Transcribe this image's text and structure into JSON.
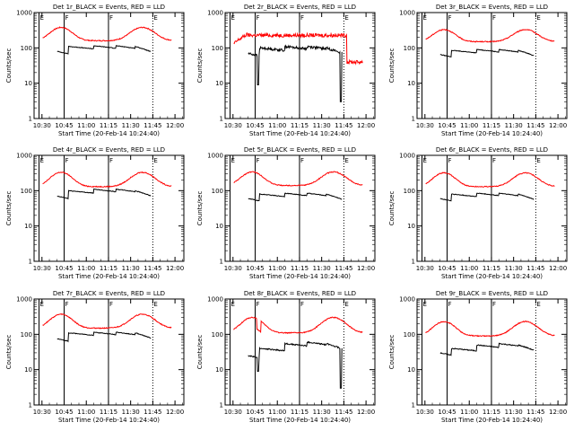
{
  "chart_data": [
    {
      "type": "line",
      "title": "Det 1r_BLACK = Events, RED = LLD",
      "xlabel": "Start Time (20-Feb-14 10:24:40)",
      "ylabel": "Counts/sec",
      "yscale": "log",
      "ylim": [
        1,
        1000
      ],
      "y_ticks": [
        "1",
        "10",
        "100",
        "1000"
      ],
      "x_ticks": [
        "10:30",
        "10:45",
        "11:00",
        "11:15",
        "11:30",
        "11:45",
        "12:00"
      ],
      "markers": [
        {
          "label": "E",
          "x": "10:28"
        },
        {
          "label": "F",
          "x": "10:45"
        },
        {
          "label": "F",
          "x": "11:15"
        },
        {
          "label": "E",
          "x": "11:45"
        }
      ],
      "series": [
        {
          "color": "#ff0000",
          "profile": "double-hump",
          "base": 160,
          "peak": 380,
          "noise": 0.03
        },
        {
          "color": "#000000",
          "profile": "segmented",
          "levels": [
            80,
            110,
            115,
            115,
            110,
            80
          ],
          "noise": 0.02
        }
      ]
    },
    {
      "type": "line",
      "title": "Det 2r_BLACK = Events, RED = LLD",
      "xlabel": "Start Time (20-Feb-14 10:24:40)",
      "ylabel": "Counts/sec",
      "yscale": "log",
      "ylim": [
        1,
        1000
      ],
      "y_ticks": [
        "1",
        "10",
        "100",
        "1000"
      ],
      "x_ticks": [
        "10:30",
        "10:45",
        "11:00",
        "11:15",
        "11:30",
        "11:45",
        "12:00"
      ],
      "markers": [
        {
          "label": "E",
          "x": "10:28"
        },
        {
          "label": "F",
          "x": "10:45"
        },
        {
          "label": "F",
          "x": "11:15"
        },
        {
          "label": "E",
          "x": "11:45"
        }
      ],
      "series": [
        {
          "color": "#ff0000",
          "profile": "noisy-plateau",
          "base": 150,
          "peak": 280,
          "noise": 0.12
        },
        {
          "color": "#000000",
          "profile": "segmented-dips",
          "levels": [
            70,
            100,
            110,
            110,
            100,
            60
          ],
          "noise": 0.08
        }
      ]
    },
    {
      "type": "line",
      "title": "Det 3r_BLACK = Events, RED = LLD",
      "xlabel": "Start Time (20-Feb-14 10:24:40)",
      "ylabel": "Counts/sec",
      "yscale": "log",
      "ylim": [
        1,
        1000
      ],
      "y_ticks": [
        "1",
        "10",
        "100",
        "1000"
      ],
      "x_ticks": [
        "10:30",
        "10:45",
        "11:00",
        "11:15",
        "11:30",
        "11:45",
        "12:00"
      ],
      "markers": [
        {
          "label": "E",
          "x": "10:28"
        },
        {
          "label": "F",
          "x": "10:45"
        },
        {
          "label": "F",
          "x": "11:15"
        },
        {
          "label": "E",
          "x": "11:45"
        }
      ],
      "series": [
        {
          "color": "#ff0000",
          "profile": "double-hump",
          "base": 150,
          "peak": 330,
          "noise": 0.03
        },
        {
          "color": "#000000",
          "profile": "segmented",
          "levels": [
            65,
            85,
            90,
            90,
            85,
            65
          ],
          "noise": 0.02
        }
      ]
    },
    {
      "type": "line",
      "title": "Det 4r_BLACK = Events, RED = LLD",
      "xlabel": "Start Time (20-Feb-14 10:24:40)",
      "ylabel": "Counts/sec",
      "yscale": "log",
      "ylim": [
        1,
        1000
      ],
      "y_ticks": [
        "1",
        "10",
        "100",
        "1000"
      ],
      "x_ticks": [
        "10:30",
        "10:45",
        "11:00",
        "11:15",
        "11:30",
        "11:45",
        "12:00"
      ],
      "markers": [
        {
          "label": "E",
          "x": "10:28"
        },
        {
          "label": "F",
          "x": "10:45"
        },
        {
          "label": "F",
          "x": "11:15"
        },
        {
          "label": "E",
          "x": "11:45"
        }
      ],
      "series": [
        {
          "color": "#ff0000",
          "profile": "double-hump",
          "base": 130,
          "peak": 330,
          "noise": 0.03
        },
        {
          "color": "#000000",
          "profile": "segmented",
          "levels": [
            70,
            100,
            110,
            110,
            100,
            70
          ],
          "noise": 0.02
        }
      ]
    },
    {
      "type": "line",
      "title": "Det 5r_BLACK = Events, RED = LLD",
      "xlabel": "Start Time (20-Feb-14 10:24:40)",
      "ylabel": "Counts/sec",
      "yscale": "log",
      "ylim": [
        1,
        1000
      ],
      "y_ticks": [
        "1",
        "10",
        "100",
        "1000"
      ],
      "x_ticks": [
        "10:30",
        "10:45",
        "11:00",
        "11:15",
        "11:30",
        "11:45",
        "12:00"
      ],
      "markers": [
        {
          "label": "E",
          "x": "10:28"
        },
        {
          "label": "F",
          "x": "10:45"
        },
        {
          "label": "F",
          "x": "11:15"
        },
        {
          "label": "E",
          "x": "11:45"
        }
      ],
      "series": [
        {
          "color": "#ff0000",
          "profile": "double-hump",
          "base": 140,
          "peak": 340,
          "noise": 0.03
        },
        {
          "color": "#000000",
          "profile": "segmented",
          "levels": [
            60,
            80,
            85,
            85,
            80,
            60
          ],
          "noise": 0.02
        }
      ]
    },
    {
      "type": "line",
      "title": "Det 6r_BLACK = Events, RED = LLD",
      "xlabel": "Start Time (20-Feb-14 10:24:40)",
      "ylabel": "Counts/sec",
      "yscale": "log",
      "ylim": [
        1,
        1000
      ],
      "y_ticks": [
        "1",
        "10",
        "100",
        "1000"
      ],
      "x_ticks": [
        "10:30",
        "10:45",
        "11:00",
        "11:15",
        "11:30",
        "11:45",
        "12:00"
      ],
      "markers": [
        {
          "label": "E",
          "x": "10:28"
        },
        {
          "label": "F",
          "x": "10:45"
        },
        {
          "label": "F",
          "x": "11:15"
        },
        {
          "label": "E",
          "x": "11:45"
        }
      ],
      "series": [
        {
          "color": "#ff0000",
          "profile": "double-hump",
          "base": 130,
          "peak": 320,
          "noise": 0.03
        },
        {
          "color": "#000000",
          "profile": "segmented",
          "levels": [
            60,
            80,
            85,
            85,
            80,
            60
          ],
          "noise": 0.02
        }
      ]
    },
    {
      "type": "line",
      "title": "Det 7r_BLACK = Events, RED = LLD",
      "xlabel": "Start Time (20-Feb-14 10:24:40)",
      "ylabel": "Counts/sec",
      "yscale": "log",
      "ylim": [
        1,
        1000
      ],
      "y_ticks": [
        "1",
        "10",
        "100",
        "1000"
      ],
      "x_ticks": [
        "10:30",
        "10:45",
        "11:00",
        "11:15",
        "11:30",
        "11:45",
        "12:00"
      ],
      "markers": [
        {
          "label": "E",
          "x": "10:28"
        },
        {
          "label": "F",
          "x": "10:45"
        },
        {
          "label": "F",
          "x": "11:15"
        },
        {
          "label": "E",
          "x": "11:45"
        }
      ],
      "series": [
        {
          "color": "#ff0000",
          "profile": "double-hump",
          "base": 150,
          "peak": 370,
          "noise": 0.03
        },
        {
          "color": "#000000",
          "profile": "segmented",
          "levels": [
            75,
            110,
            115,
            115,
            110,
            75
          ],
          "noise": 0.02
        }
      ]
    },
    {
      "type": "line",
      "title": "Det 8r_BLACK = Events, RED = LLD",
      "xlabel": "Start Time (20-Feb-14 10:24:40)",
      "ylabel": "Counts/sec",
      "yscale": "log",
      "ylim": [
        1,
        1000
      ],
      "y_ticks": [
        "1",
        "10",
        "100",
        "1000"
      ],
      "x_ticks": [
        "10:30",
        "10:45",
        "11:00",
        "11:15",
        "11:30",
        "11:45",
        "12:00"
      ],
      "markers": [
        {
          "label": "E",
          "x": "10:28"
        },
        {
          "label": "F",
          "x": "10:45"
        },
        {
          "label": "F",
          "x": "11:15"
        },
        {
          "label": "E",
          "x": "11:45"
        }
      ],
      "series": [
        {
          "color": "#ff0000",
          "profile": "double-hump-notch",
          "base": 110,
          "peak": 300,
          "noise": 0.03
        },
        {
          "color": "#000000",
          "profile": "segmented-dips",
          "levels": [
            25,
            40,
            55,
            60,
            55,
            30
          ],
          "noise": 0.04
        }
      ]
    },
    {
      "type": "line",
      "title": "Det 9r_BLACK = Events, RED = LLD",
      "xlabel": "Start Time (20-Feb-14 10:24:40)",
      "ylabel": "Counts/sec",
      "yscale": "log",
      "ylim": [
        1,
        1000
      ],
      "y_ticks": [
        "1",
        "10",
        "100",
        "1000"
      ],
      "x_ticks": [
        "10:30",
        "10:45",
        "11:00",
        "11:15",
        "11:30",
        "11:45",
        "12:00"
      ],
      "markers": [
        {
          "label": "E",
          "x": "10:28"
        },
        {
          "label": "F",
          "x": "10:45"
        },
        {
          "label": "F",
          "x": "11:15"
        },
        {
          "label": "E",
          "x": "11:45"
        }
      ],
      "series": [
        {
          "color": "#ff0000",
          "profile": "double-hump",
          "base": 90,
          "peak": 230,
          "noise": 0.03
        },
        {
          "color": "#000000",
          "profile": "segmented",
          "levels": [
            30,
            40,
            50,
            55,
            50,
            35
          ],
          "noise": 0.03
        }
      ]
    }
  ]
}
